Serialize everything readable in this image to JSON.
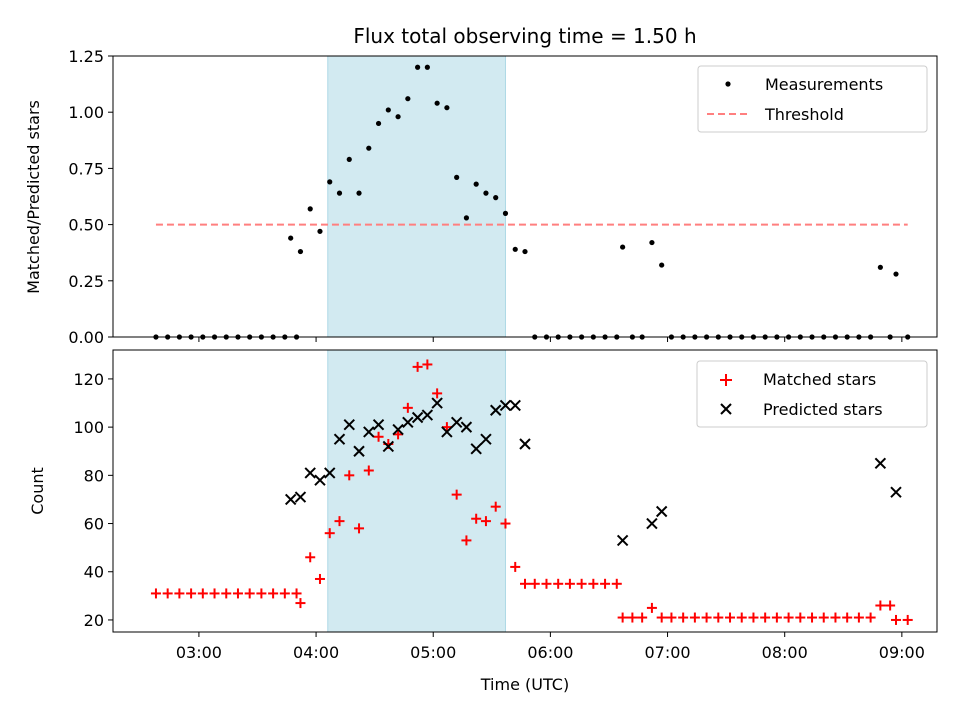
{
  "chart_data": [
    {
      "type": "scatter",
      "title": "Flux total observing time = 1.50 h",
      "xlabel": "",
      "ylabel": "Matched/Predicted stars",
      "ylim": [
        0,
        1.25
      ],
      "yticks": [
        "0.00",
        "0.25",
        "0.50",
        "0.75",
        "1.00",
        "1.25"
      ],
      "xlim": [
        "02:16",
        "09:18"
      ],
      "highlight_span": [
        "04:06",
        "05:37"
      ],
      "highlight_color": "#add8e6",
      "legend_placement": "top-right",
      "series": [
        {
          "name": "Measurements",
          "marker": "dot",
          "color": "#000000",
          "points": [
            [
              "02:38",
              0
            ],
            [
              "02:44",
              0
            ],
            [
              "02:50",
              0
            ],
            [
              "02:56",
              0
            ],
            [
              "03:02",
              0
            ],
            [
              "03:08",
              0
            ],
            [
              "03:14",
              0
            ],
            [
              "03:20",
              0
            ],
            [
              "03:26",
              0
            ],
            [
              "03:32",
              0
            ],
            [
              "03:38",
              0
            ],
            [
              "03:44",
              0
            ],
            [
              "03:50",
              0
            ],
            [
              "03:47",
              0.44
            ],
            [
              "03:52",
              0.38
            ],
            [
              "03:57",
              0.57
            ],
            [
              "04:02",
              0.47
            ],
            [
              "04:07",
              0.69
            ],
            [
              "04:12",
              0.64
            ],
            [
              "04:17",
              0.79
            ],
            [
              "04:22",
              0.64
            ],
            [
              "04:27",
              0.84
            ],
            [
              "04:32",
              0.95
            ],
            [
              "04:37",
              1.01
            ],
            [
              "04:42",
              0.98
            ],
            [
              "04:47",
              1.06
            ],
            [
              "04:52",
              1.2
            ],
            [
              "04:57",
              1.2
            ],
            [
              "05:02",
              1.04
            ],
            [
              "05:07",
              1.02
            ],
            [
              "05:12",
              0.71
            ],
            [
              "05:17",
              0.53
            ],
            [
              "05:22",
              0.68
            ],
            [
              "05:27",
              0.64
            ],
            [
              "05:32",
              0.62
            ],
            [
              "05:37",
              0.55
            ],
            [
              "05:42",
              0.39
            ],
            [
              "05:47",
              0.38
            ],
            [
              "05:52",
              0
            ],
            [
              "05:58",
              0
            ],
            [
              "06:04",
              0
            ],
            [
              "06:10",
              0
            ],
            [
              "06:16",
              0
            ],
            [
              "06:22",
              0
            ],
            [
              "06:28",
              0
            ],
            [
              "06:34",
              0
            ],
            [
              "06:37",
              0.4
            ],
            [
              "06:42",
              0
            ],
            [
              "06:47",
              0
            ],
            [
              "06:52",
              0.42
            ],
            [
              "06:57",
              0.32
            ],
            [
              "07:02",
              0
            ],
            [
              "07:08",
              0
            ],
            [
              "07:14",
              0
            ],
            [
              "07:20",
              0
            ],
            [
              "07:26",
              0
            ],
            [
              "07:32",
              0
            ],
            [
              "07:38",
              0
            ],
            [
              "07:44",
              0
            ],
            [
              "07:50",
              0
            ],
            [
              "07:56",
              0
            ],
            [
              "08:02",
              0
            ],
            [
              "08:08",
              0
            ],
            [
              "08:14",
              0
            ],
            [
              "08:20",
              0
            ],
            [
              "08:26",
              0
            ],
            [
              "08:32",
              0
            ],
            [
              "08:38",
              0
            ],
            [
              "08:44",
              0
            ],
            [
              "08:49",
              0.31
            ],
            [
              "08:54",
              0
            ],
            [
              "08:57",
              0.28
            ],
            [
              "09:03",
              0
            ]
          ]
        },
        {
          "name": "Threshold",
          "marker": "dashed-line",
          "color": "#ff7f7f",
          "points": [
            [
              "02:38",
              0.5
            ],
            [
              "09:03",
              0.5
            ]
          ]
        }
      ]
    },
    {
      "type": "scatter",
      "title": "",
      "xlabel": "Time (UTC)",
      "ylabel": "Count",
      "ylim": [
        15,
        132
      ],
      "yticks": [
        "20",
        "40",
        "60",
        "80",
        "100",
        "120"
      ],
      "xticks": [
        "03:00",
        "04:00",
        "05:00",
        "06:00",
        "07:00",
        "08:00",
        "09:00"
      ],
      "xlim": [
        "02:16",
        "09:18"
      ],
      "highlight_span": [
        "04:06",
        "05:37"
      ],
      "highlight_color": "#add8e6",
      "legend_placement": "top-right",
      "series": [
        {
          "name": "Matched stars",
          "marker": "plus",
          "color": "#ff0000",
          "points": [
            [
              "02:38",
              31
            ],
            [
              "02:44",
              31
            ],
            [
              "02:50",
              31
            ],
            [
              "02:56",
              31
            ],
            [
              "03:02",
              31
            ],
            [
              "03:08",
              31
            ],
            [
              "03:14",
              31
            ],
            [
              "03:20",
              31
            ],
            [
              "03:26",
              31
            ],
            [
              "03:32",
              31
            ],
            [
              "03:38",
              31
            ],
            [
              "03:44",
              31
            ],
            [
              "03:50",
              31
            ],
            [
              "03:52",
              27
            ],
            [
              "03:57",
              46
            ],
            [
              "04:02",
              37
            ],
            [
              "04:07",
              56
            ],
            [
              "04:12",
              61
            ],
            [
              "04:17",
              80
            ],
            [
              "04:22",
              58
            ],
            [
              "04:27",
              82
            ],
            [
              "04:32",
              96
            ],
            [
              "04:37",
              93
            ],
            [
              "04:42",
              97
            ],
            [
              "04:47",
              108
            ],
            [
              "04:52",
              125
            ],
            [
              "04:57",
              126
            ],
            [
              "05:02",
              114
            ],
            [
              "05:07",
              100
            ],
            [
              "05:12",
              72
            ],
            [
              "05:17",
              53
            ],
            [
              "05:22",
              62
            ],
            [
              "05:27",
              61
            ],
            [
              "05:32",
              67
            ],
            [
              "05:37",
              60
            ],
            [
              "05:42",
              42
            ],
            [
              "05:47",
              35
            ],
            [
              "05:52",
              35
            ],
            [
              "05:58",
              35
            ],
            [
              "06:04",
              35
            ],
            [
              "06:10",
              35
            ],
            [
              "06:16",
              35
            ],
            [
              "06:22",
              35
            ],
            [
              "06:28",
              35
            ],
            [
              "06:34",
              35
            ],
            [
              "06:37",
              21
            ],
            [
              "06:42",
              21
            ],
            [
              "06:47",
              21
            ],
            [
              "06:52",
              25
            ],
            [
              "06:57",
              21
            ],
            [
              "07:02",
              21
            ],
            [
              "07:08",
              21
            ],
            [
              "07:14",
              21
            ],
            [
              "07:20",
              21
            ],
            [
              "07:26",
              21
            ],
            [
              "07:32",
              21
            ],
            [
              "07:38",
              21
            ],
            [
              "07:44",
              21
            ],
            [
              "07:50",
              21
            ],
            [
              "07:56",
              21
            ],
            [
              "08:02",
              21
            ],
            [
              "08:08",
              21
            ],
            [
              "08:14",
              21
            ],
            [
              "08:20",
              21
            ],
            [
              "08:26",
              21
            ],
            [
              "08:32",
              21
            ],
            [
              "08:38",
              21
            ],
            [
              "08:44",
              21
            ],
            [
              "08:49",
              26
            ],
            [
              "08:54",
              26
            ],
            [
              "08:57",
              20
            ],
            [
              "09:03",
              20
            ]
          ]
        },
        {
          "name": "Predicted stars",
          "marker": "x",
          "color": "#000000",
          "points": [
            [
              "03:47",
              70
            ],
            [
              "03:52",
              71
            ],
            [
              "03:57",
              81
            ],
            [
              "04:02",
              78
            ],
            [
              "04:07",
              81
            ],
            [
              "04:12",
              95
            ],
            [
              "04:17",
              101
            ],
            [
              "04:22",
              90
            ],
            [
              "04:27",
              98
            ],
            [
              "04:32",
              101
            ],
            [
              "04:37",
              92
            ],
            [
              "04:42",
              99
            ],
            [
              "04:47",
              102
            ],
            [
              "04:52",
              104
            ],
            [
              "04:57",
              105
            ],
            [
              "05:02",
              110
            ],
            [
              "05:07",
              98
            ],
            [
              "05:12",
              102
            ],
            [
              "05:17",
              100
            ],
            [
              "05:22",
              91
            ],
            [
              "05:27",
              95
            ],
            [
              "05:32",
              107
            ],
            [
              "05:37",
              109
            ],
            [
              "05:42",
              109
            ],
            [
              "05:47",
              93
            ],
            [
              "06:37",
              53
            ],
            [
              "06:52",
              60
            ],
            [
              "06:57",
              65
            ],
            [
              "08:49",
              85
            ],
            [
              "08:57",
              73
            ]
          ]
        }
      ]
    }
  ]
}
